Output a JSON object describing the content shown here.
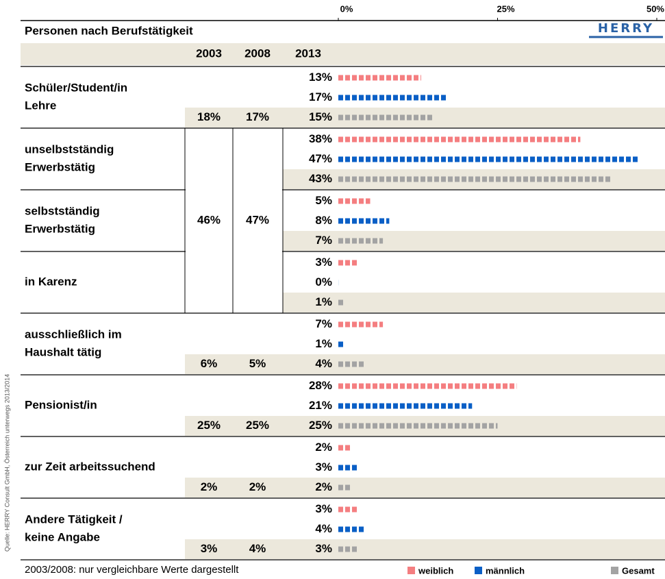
{
  "title": "Personen nach Berufstätigkeit",
  "logo": "HERRY",
  "columns": [
    "2003",
    "2008",
    "2013"
  ],
  "axis": {
    "xlim": [
      0,
      50
    ],
    "xticks": [
      {
        "value": 0,
        "label": "0%"
      },
      {
        "value": 25,
        "label": "25%"
      },
      {
        "value": 50,
        "label": "50%"
      }
    ]
  },
  "series": [
    {
      "name": "weiblich",
      "color": "#f47e80"
    },
    {
      "name": "männlich",
      "color": "#0a5fc6"
    },
    {
      "name": "Gesamt",
      "color": "#a3a3a3"
    }
  ],
  "rows": [
    {
      "label": [
        "Schüler/Student/in",
        "Lehre"
      ],
      "values": [
        13,
        17,
        15
      ],
      "value_labels": [
        "13%",
        "17%",
        "15%"
      ],
      "2003": "18%",
      "2008": "17%"
    },
    {
      "label": [
        "unselbstständig",
        "Erwerbstätig"
      ],
      "values": [
        38,
        47,
        43
      ],
      "value_labels": [
        "38%",
        "47%",
        "43%"
      ]
    },
    {
      "label": [
        "selbstständig",
        "Erwerbstätig"
      ],
      "values": [
        5,
        8,
        7
      ],
      "value_labels": [
        "5%",
        "8%",
        "7%"
      ]
    },
    {
      "label": [
        "in Karenz"
      ],
      "values": [
        3,
        0,
        1
      ],
      "value_labels": [
        "3%",
        "0%",
        "1%"
      ]
    },
    {
      "label": [
        "ausschließlich im",
        "Haushalt tätig"
      ],
      "values": [
        7,
        1,
        4
      ],
      "value_labels": [
        "7%",
        "1%",
        "4%"
      ],
      "2003": "6%",
      "2008": "5%"
    },
    {
      "label": [
        "Pensionist/in"
      ],
      "values": [
        28,
        21,
        25
      ],
      "value_labels": [
        "28%",
        "21%",
        "25%"
      ],
      "2003": "25%",
      "2008": "25%"
    },
    {
      "label": [
        "zur Zeit arbeitssuchend"
      ],
      "values": [
        2,
        3,
        2
      ],
      "value_labels": [
        "2%",
        "3%",
        "2%"
      ],
      "2003": "2%",
      "2008": "2%"
    },
    {
      "label": [
        "Andere Tätigkeit /",
        "keine Angabe"
      ],
      "values": [
        3,
        4,
        3
      ],
      "value_labels": [
        "3%",
        "4%",
        "3%"
      ],
      "2003": "3%",
      "2008": "4%"
    }
  ],
  "merged": {
    "2003": "46%",
    "2008": "47%"
  },
  "note": "2003/2008: nur vergleichbare Werte dargestellt",
  "source": "Quelle: HERRY Consult GmbH, Österreich unterwegs 2013/2014"
}
